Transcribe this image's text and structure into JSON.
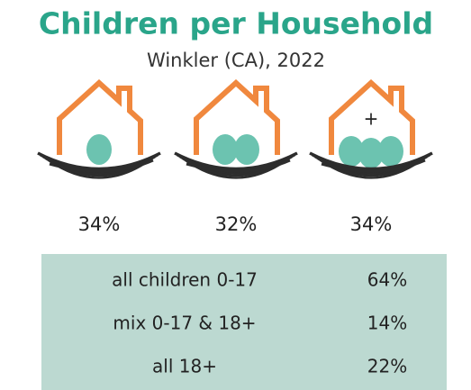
{
  "title": "Children per Household",
  "subtitle": "Winkler (CA), 2022",
  "nests": [
    {
      "label": "34%"
    },
    {
      "label": "32%"
    },
    {
      "symbol": "+",
      "label": "34%"
    }
  ],
  "table": {
    "rows": [
      [
        "all children 0-17",
        "64%"
      ],
      [
        "mix 0-17 & 18+",
        "14%"
      ],
      [
        "all 18+",
        "22%"
      ]
    ]
  }
}
